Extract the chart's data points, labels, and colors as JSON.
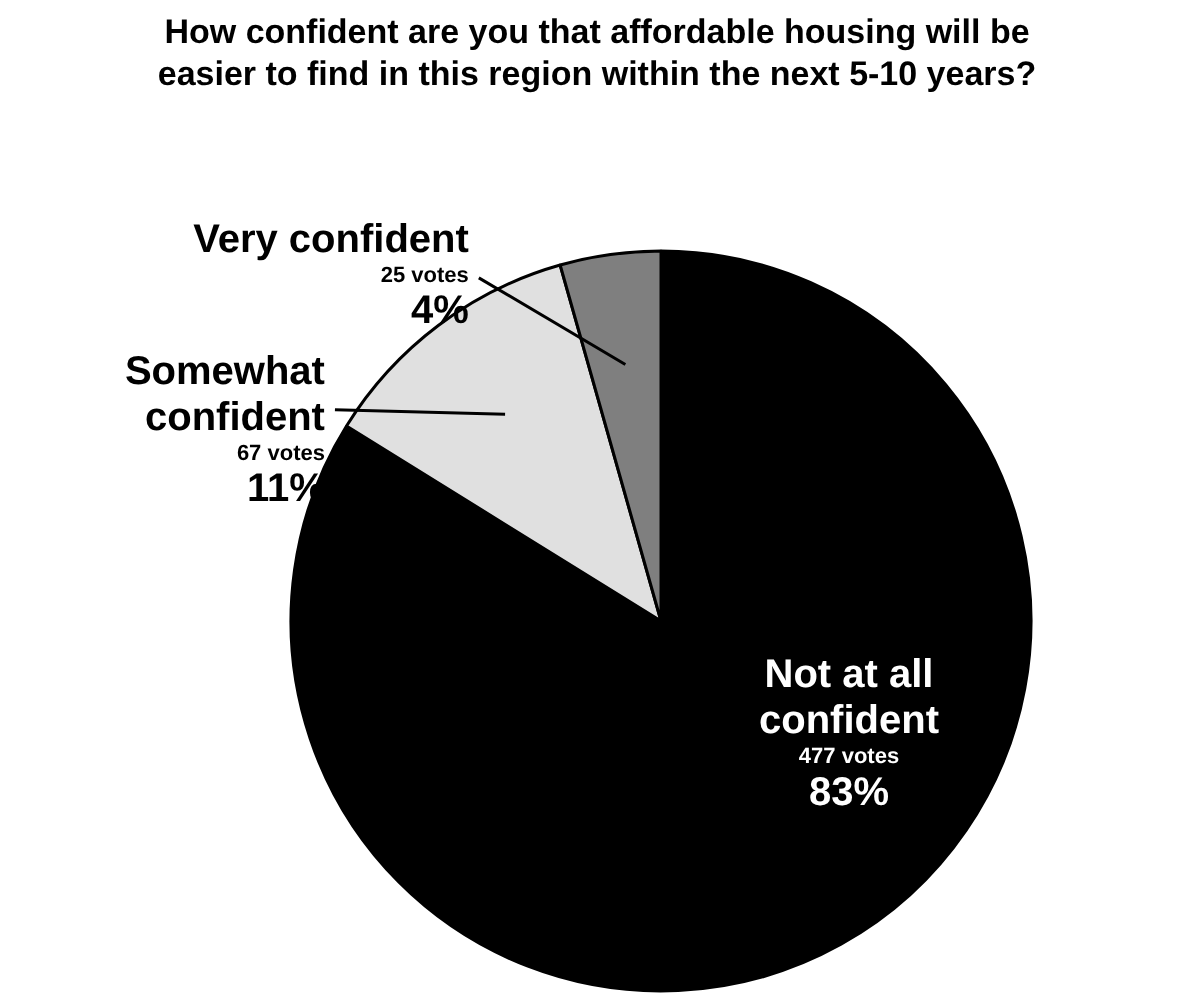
{
  "chart_data": {
    "type": "pie",
    "title": "How confident are you that affordable housing will be easier to find in this region within the next 5-10 years?",
    "categories": [
      "Not at all confident",
      "Somewhat confident",
      "Very confident"
    ],
    "values": [
      477,
      67,
      25
    ],
    "colors": [
      "#000000",
      "#e0e0e0",
      "#7f7f7f"
    ],
    "value_labels": [
      "477 votes\n83%",
      "67 votes\n11%",
      "25 votes\n4%"
    ]
  }
}
